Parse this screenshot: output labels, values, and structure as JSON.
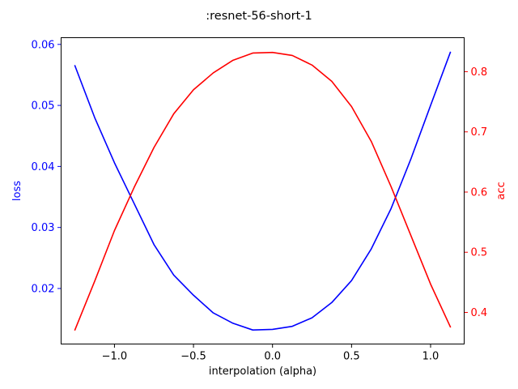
{
  "chart_data": {
    "type": "line",
    "title": ":resnet-56-short-1",
    "xlabel": "interpolation (alpha)",
    "x": [
      -1.25,
      -1.125,
      -1.0,
      -0.875,
      -0.75,
      -0.625,
      -0.5,
      -0.375,
      -0.25,
      -0.125,
      0.0,
      0.125,
      0.25,
      0.375,
      0.5,
      0.625,
      0.75,
      0.875,
      1.0,
      1.125
    ],
    "xlim": [
      -1.3375,
      1.2125
    ],
    "xticks": [
      -1.0,
      -0.5,
      0.0,
      0.5,
      1.0
    ],
    "xtick_labels": [
      "−1.0",
      "−0.5",
      "0.0",
      "0.5",
      "1.0"
    ],
    "left_axis": {
      "label": "loss",
      "color": "#0000ff",
      "ylim": [
        0.0109,
        0.0611
      ],
      "ticks": [
        0.02,
        0.03,
        0.04,
        0.05,
        0.06
      ],
      "tick_labels": [
        "0.02",
        "0.03",
        "0.04",
        "0.05",
        "0.06"
      ]
    },
    "right_axis": {
      "label": "acc",
      "color": "#ff0000",
      "ylim": [
        0.3475,
        0.8565
      ],
      "ticks": [
        0.4,
        0.5,
        0.6,
        0.7,
        0.8
      ],
      "tick_labels": [
        "0.4",
        "0.5",
        "0.6",
        "0.7",
        "0.8"
      ]
    },
    "series": [
      {
        "axis": "left",
        "color": "#0000ff",
        "values": [
          0.0565,
          0.048,
          0.0406,
          0.0339,
          0.0272,
          0.0222,
          0.0189,
          0.016,
          0.0143,
          0.0132,
          0.0133,
          0.0138,
          0.0152,
          0.0177,
          0.0213,
          0.0265,
          0.0331,
          0.0412,
          0.05,
          0.0587
        ]
      },
      {
        "axis": "right",
        "color": "#ff0000",
        "values": [
          0.371,
          0.452,
          0.536,
          0.608,
          0.674,
          0.73,
          0.77,
          0.798,
          0.819,
          0.831,
          0.832,
          0.827,
          0.811,
          0.784,
          0.742,
          0.684,
          0.609,
          0.528,
          0.447,
          0.376
        ]
      }
    ]
  }
}
